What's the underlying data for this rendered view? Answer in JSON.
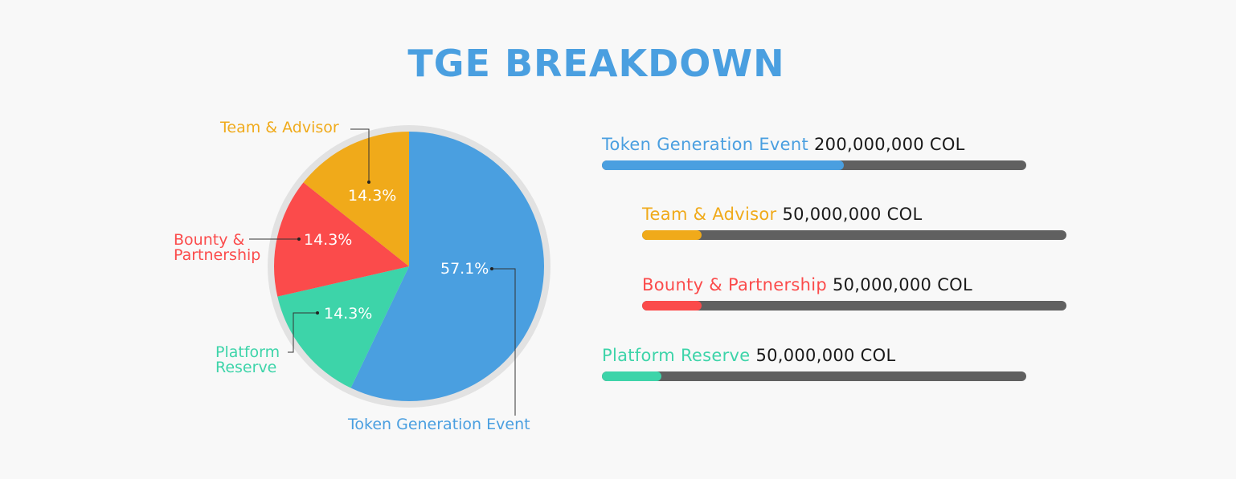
{
  "title": "TGE BREAKDOWN",
  "chart_data": [
    {
      "type": "pie",
      "title": "",
      "slices": [
        {
          "label": "Token Generation Event",
          "value": 57.1,
          "pct_text": "57.1%",
          "color": "#4a9fe0"
        },
        {
          "label": "Platform Reserve",
          "value": 14.3,
          "pct_text": "14.3%",
          "color": "#3dd4a9"
        },
        {
          "label": "Bounty & Partnership",
          "value": 14.3,
          "pct_text": "14.3%",
          "color": "#fb4b4b"
        },
        {
          "label": "Team & Advisor",
          "value": 14.3,
          "pct_text": "14.3%",
          "color": "#f0aa1a"
        }
      ],
      "outer_ring_color": "#e2e2e2"
    },
    {
      "type": "bar",
      "orientation": "horizontal",
      "categories": [
        "Token Generation Event",
        "Team & Advisor",
        "Bounty & Partnership",
        "Platform Reserve"
      ],
      "values": [
        200000000,
        50000000,
        50000000,
        50000000
      ],
      "value_text": [
        "200,000,000 COL",
        "50,000,000 COL",
        "50,000,000 COL",
        "50,000,000 COL"
      ],
      "fill_fraction": [
        0.57,
        0.14,
        0.14,
        0.14
      ],
      "colors": [
        "#4a9fe0",
        "#f0aa1a",
        "#fb4b4b",
        "#3dd4a9"
      ],
      "track_color": "#606060"
    }
  ]
}
